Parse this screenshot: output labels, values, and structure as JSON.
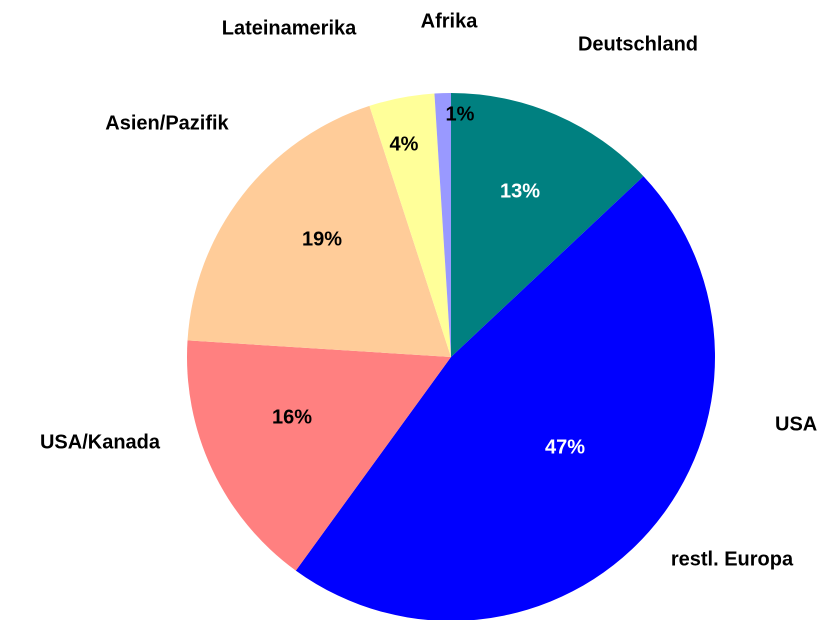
{
  "chart_data": {
    "type": "pie",
    "categories": [
      "Deutschland",
      "restl. Europa",
      "USA/Kanada",
      "Asien/Pazifik",
      "Lateinamerika",
      "Afrika"
    ],
    "values": [
      13,
      47,
      16,
      19,
      4,
      1
    ],
    "value_labels": [
      "13%",
      "47%",
      "16%",
      "19%",
      "4%",
      "1%"
    ],
    "colors": [
      "#008080",
      "#0000ff",
      "#ff8080",
      "#ffcc99",
      "#ffff99",
      "#9999ff"
    ],
    "annotations": [
      "USA"
    ]
  }
}
